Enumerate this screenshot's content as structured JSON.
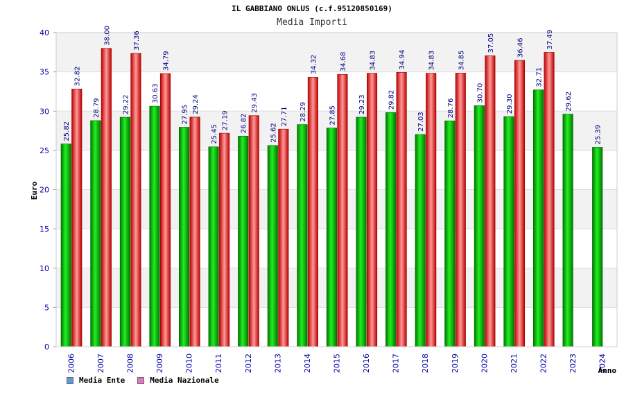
{
  "header": {
    "title": "IL GABBIANO ONLUS (c.f.95120850169)",
    "subtitle": "Media Importi"
  },
  "chart_data": {
    "type": "bar",
    "title": "Media Importi",
    "xlabel": "Anno",
    "ylabel": "Euro",
    "ylim": [
      0,
      40
    ],
    "yticks": [
      0,
      5,
      10,
      15,
      20,
      25,
      30,
      35,
      40
    ],
    "grid": true,
    "legend_position": "bottom-left",
    "categories": [
      "2006",
      "2007",
      "2008",
      "2009",
      "2010",
      "2011",
      "2012",
      "2013",
      "2014",
      "2015",
      "2016",
      "2017",
      "2018",
      "2019",
      "2020",
      "2021",
      "2022",
      "2023",
      "2024"
    ],
    "series": [
      {
        "name": "Media Ente",
        "color": "#00aa00",
        "legend_color": "#5b9bd5",
        "values": [
          25.82,
          28.79,
          29.22,
          30.63,
          27.95,
          25.45,
          26.82,
          25.62,
          28.29,
          27.85,
          29.23,
          29.82,
          27.03,
          28.76,
          30.7,
          29.3,
          32.71,
          29.62,
          25.39
        ],
        "labels": [
          "25.82",
          "28.79",
          "29.22",
          "30.63",
          "27.95",
          "25.45",
          "26.82",
          "25.62",
          "28.29",
          "27.85",
          "29.23",
          "29.82",
          "27.03",
          "28.76",
          "30.70",
          "29.30",
          "32.71",
          "29.62",
          "25.39"
        ]
      },
      {
        "name": "Media Nazionale",
        "color": "#dd0000",
        "legend_color": "#e377c2",
        "values": [
          32.82,
          38.0,
          37.36,
          34.79,
          29.24,
          27.19,
          29.43,
          27.71,
          34.32,
          34.68,
          34.83,
          34.94,
          34.83,
          34.85,
          37.05,
          36.46,
          37.49,
          null,
          null
        ],
        "labels": [
          "32.82",
          "38.00",
          "37.36",
          "34.79",
          "29.24",
          "27.19",
          "29.43",
          "27.71",
          "34.32",
          "34.68",
          "34.83",
          "34.94",
          "34.83",
          "34.85",
          "37.05",
          "36.46",
          "37.49",
          null,
          null
        ]
      }
    ],
    "colors": {
      "axis_label": "#0000aa",
      "value_label": "#000080",
      "band": "#f2f2f2"
    }
  }
}
